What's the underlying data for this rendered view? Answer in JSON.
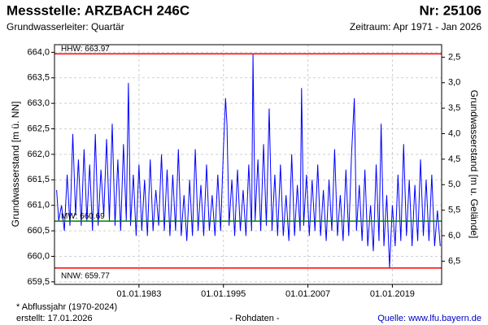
{
  "chart_data": {
    "type": "line",
    "title": "Messstelle: ARZBACH 246C",
    "station_number": "Nr: 25106",
    "subtitle": "Grundwasserleiter: Quartär",
    "period": "Zeitraum: Apr 1971 - Jan 2026",
    "ylabel": "Grundwasserstand [m ü. NN]",
    "y2label": "Grundwasserstand [m u. Gelände]",
    "footnote": "* Abflussjahr (1970-2024)",
    "created": "erstellt:  17.01.2026",
    "data_note": "- Rohdaten -",
    "source": "Quelle: www.lfu.bayern.de",
    "grid": true,
    "xlim": [
      1971.0,
      2026.0
    ],
    "xticks": [
      {
        "value": 1983,
        "label": "01.01.1983"
      },
      {
        "value": 1995,
        "label": "01.01.1995"
      },
      {
        "value": 2007,
        "label": "01.01.2007"
      },
      {
        "value": 2019,
        "label": "01.01.2019"
      }
    ],
    "ylim": [
      659.45,
      664.15
    ],
    "yticks": [
      {
        "value": 659.5,
        "label": "659,5"
      },
      {
        "value": 660,
        "label": "660,0"
      },
      {
        "value": 660.5,
        "label": "660,5"
      },
      {
        "value": 661,
        "label": "661,0"
      },
      {
        "value": 661.5,
        "label": "661,5"
      },
      {
        "value": 662,
        "label": "662,0"
      },
      {
        "value": 662.5,
        "label": "662,5"
      },
      {
        "value": 663,
        "label": "663,0"
      },
      {
        "value": 663.5,
        "label": "663,5"
      },
      {
        "value": 664,
        "label": "664,0"
      }
    ],
    "y2lim": [
      6.955,
      2.255
    ],
    "y2ticks": [
      {
        "value": 2.5,
        "label": "2,5"
      },
      {
        "value": 3,
        "label": "3,0"
      },
      {
        "value": 3.5,
        "label": "3,5"
      },
      {
        "value": 4,
        "label": "4,0"
      },
      {
        "value": 4.5,
        "label": "4,5"
      },
      {
        "value": 5,
        "label": "5,0"
      },
      {
        "value": 5.5,
        "label": "5,5"
      },
      {
        "value": 6,
        "label": "6,0"
      },
      {
        "value": 6.5,
        "label": "6,5"
      }
    ],
    "reference_lines": [
      {
        "label": "HHW: 663.97",
        "value": 663.97,
        "color": "#ff0000"
      },
      {
        "label": "MW: 660.69",
        "value": 660.69,
        "color": "#008000"
      },
      {
        "label": "NNW: 659.77",
        "value": 659.77,
        "color": "#ff0000"
      }
    ],
    "x": [
      1971.3,
      1971.6,
      1972.0,
      1972.4,
      1972.8,
      1973.2,
      1973.6,
      1974.0,
      1974.4,
      1974.8,
      1975.2,
      1975.6,
      1976.0,
      1976.4,
      1976.8,
      1977.2,
      1977.6,
      1978.0,
      1978.4,
      1978.8,
      1979.2,
      1979.6,
      1980.0,
      1980.4,
      1980.8,
      1981.2,
      1981.5,
      1981.8,
      1982.2,
      1982.6,
      1983.0,
      1983.4,
      1983.8,
      1984.2,
      1984.6,
      1985.0,
      1985.4,
      1985.8,
      1986.2,
      1986.6,
      1987.0,
      1987.4,
      1987.8,
      1988.2,
      1988.6,
      1989.0,
      1989.4,
      1989.8,
      1990.2,
      1990.6,
      1991.0,
      1991.4,
      1991.8,
      1992.2,
      1992.6,
      1993.0,
      1993.4,
      1993.8,
      1994.2,
      1994.6,
      1995.0,
      1995.3,
      1995.5,
      1995.8,
      1996.2,
      1996.6,
      1997.0,
      1997.4,
      1997.8,
      1998.2,
      1998.6,
      1999.0,
      1999.2,
      1999.5,
      1999.9,
      2000.3,
      2000.7,
      2001.1,
      2001.5,
      2001.9,
      2002.3,
      2002.7,
      2003.1,
      2003.5,
      2003.9,
      2004.3,
      2004.7,
      2005.1,
      2005.5,
      2005.9,
      2006.1,
      2006.4,
      2006.8,
      2007.2,
      2007.6,
      2008.0,
      2008.4,
      2008.8,
      2009.2,
      2009.6,
      2010.0,
      2010.4,
      2010.8,
      2011.2,
      2011.6,
      2012.0,
      2012.4,
      2012.8,
      2013.2,
      2013.6,
      2013.9,
      2014.3,
      2014.7,
      2015.1,
      2015.5,
      2015.9,
      2016.3,
      2016.7,
      2017.1,
      2017.4,
      2017.8,
      2018.2,
      2018.6,
      2019.0,
      2019.4,
      2019.8,
      2020.2,
      2020.6,
      2021.0,
      2021.4,
      2021.8,
      2022.2,
      2022.6,
      2023.0,
      2023.4,
      2023.8,
      2024.2,
      2024.6,
      2025.0,
      2025.4,
      2025.8
    ],
    "series": [
      {
        "color": "#0000ff",
        "values": [
          661.3,
          660.7,
          661.0,
          660.5,
          661.6,
          660.6,
          662.4,
          660.8,
          661.9,
          660.6,
          662.1,
          660.7,
          661.8,
          660.5,
          662.4,
          660.6,
          661.7,
          660.8,
          662.3,
          660.7,
          662.6,
          660.6,
          661.9,
          660.5,
          662.2,
          660.7,
          663.4,
          660.6,
          661.6,
          660.4,
          661.8,
          660.5,
          661.5,
          660.4,
          661.9,
          660.5,
          661.3,
          660.6,
          662.0,
          660.5,
          661.7,
          660.4,
          661.6,
          660.5,
          662.1,
          660.4,
          661.2,
          660.3,
          661.5,
          660.4,
          662.1,
          660.5,
          661.4,
          660.4,
          661.8,
          660.5,
          661.2,
          660.4,
          661.6,
          660.5,
          662.1,
          663.1,
          662.6,
          660.6,
          661.5,
          660.4,
          661.7,
          660.5,
          661.3,
          660.4,
          661.8,
          660.5,
          663.96,
          660.7,
          661.9,
          660.5,
          662.2,
          660.6,
          662.9,
          660.5,
          661.6,
          660.4,
          661.8,
          660.4,
          661.2,
          660.3,
          662.0,
          660.4,
          661.4,
          660.5,
          663.3,
          660.6,
          661.6,
          660.4,
          661.5,
          660.5,
          661.8,
          660.4,
          661.3,
          660.3,
          661.5,
          660.5,
          662.1,
          660.4,
          661.2,
          660.3,
          661.7,
          660.4,
          662.0,
          663.1,
          660.5,
          661.4,
          660.3,
          661.7,
          660.2,
          661.0,
          660.1,
          661.8,
          660.3,
          662.6,
          660.2,
          661.2,
          659.77,
          661.0,
          660.2,
          661.6,
          660.3,
          662.2,
          660.4,
          661.5,
          660.2,
          661.4,
          660.3,
          661.9,
          660.4,
          661.5,
          660.3,
          661.6,
          660.2,
          660.9,
          660.2
        ]
      }
    ]
  }
}
